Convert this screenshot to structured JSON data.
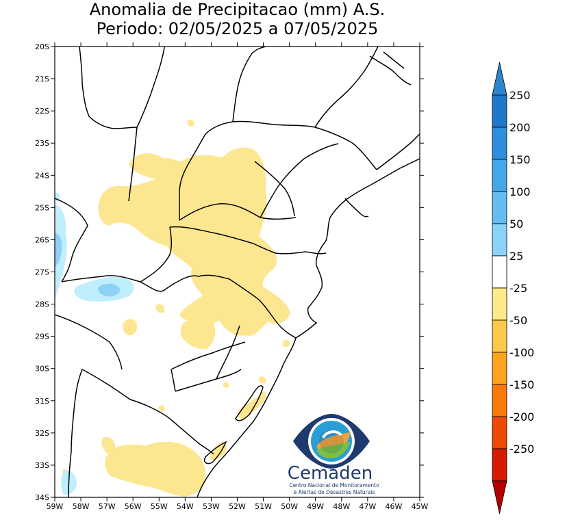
{
  "title": {
    "line1": "Anomalia de Precipitacao (mm) A.S.",
    "line2": "Periodo: 02/05/2025 a 07/05/2025"
  },
  "map": {
    "lat_labels": [
      "20S",
      "21S",
      "22S",
      "23S",
      "24S",
      "25S",
      "26S",
      "27S",
      "28S",
      "29S",
      "30S",
      "31S",
      "32S",
      "33S",
      "34S"
    ],
    "lon_labels": [
      "59W",
      "58W",
      "57W",
      "56W",
      "55W",
      "54W",
      "53W",
      "52W",
      "51W",
      "50W",
      "49W",
      "48W",
      "47W",
      "46W",
      "45W"
    ]
  },
  "colorbar": {
    "labels": [
      "250",
      "200",
      "150",
      "100",
      "50",
      "25",
      "-25",
      "-50",
      "-100",
      "-150",
      "-200",
      "-250"
    ],
    "colors_wet": [
      "#1e78c8",
      "#2f8fdc",
      "#46a6ea",
      "#64bcf2",
      "#8cd2f8",
      "#b8ecfc"
    ],
    "colors_dry": [
      "#fde88a",
      "#fdc94a",
      "#fca41e",
      "#f97a0a",
      "#ee4a04",
      "#d61a02"
    ],
    "cap_top_color": "#2a86cf",
    "cap_bottom_color": "#b40000"
  },
  "anomaly_colors": {
    "light_dry": "#fde690",
    "light_wet": "#bfeefc",
    "mid_wet": "#8fd0f6",
    "deep_wet": "#5eb2ee"
  },
  "logo": {
    "name": "Cemaden",
    "subtitle_line1": "Centro Nacional de Monitoramento",
    "subtitle_line2": "e Alertas de Desastres Naturais"
  }
}
